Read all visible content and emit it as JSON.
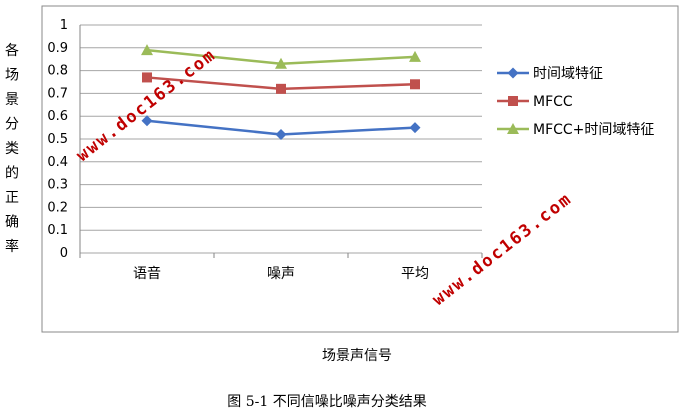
{
  "chart_data": {
    "type": "line",
    "categories": [
      "语音",
      "噪声",
      "平均"
    ],
    "series": [
      {
        "name": "时间域特征",
        "values": [
          0.58,
          0.52,
          0.55
        ],
        "color": "#4472c4",
        "marker": "diamond"
      },
      {
        "name": "MFCC",
        "values": [
          0.77,
          0.72,
          0.74
        ],
        "color": "#c0504d",
        "marker": "square"
      },
      {
        "name": "MFCC+时间域特征",
        "values": [
          0.89,
          0.83,
          0.86
        ],
        "color": "#9bbb59",
        "marker": "triangle"
      }
    ],
    "ylabel": "各场景分类的正确率",
    "xlabel": "场景声信号",
    "ylim": [
      0,
      1
    ],
    "yticks": [
      "0",
      "0.1",
      "0.2",
      "0.3",
      "0.4",
      "0.5",
      "0.6",
      "0.7",
      "0.8",
      "0.9",
      "1"
    ],
    "grid": true,
    "legend": "right"
  },
  "caption": "图 5-1  不同信噪比噪声分类结果",
  "watermarks": [
    "www.doc163.com",
    "www.doc163.com"
  ]
}
